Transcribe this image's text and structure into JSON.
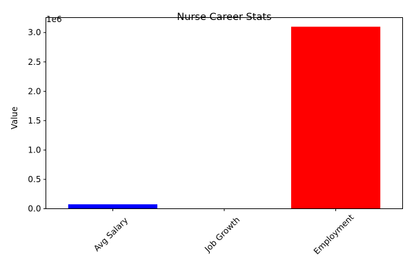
{
  "chart_data": {
    "type": "bar",
    "title": "Nurse Career Stats",
    "xlabel": "",
    "ylabel": "Value",
    "categories": [
      "Avg Salary",
      "Job Growth",
      "Employment"
    ],
    "values": [
      75000,
      7,
      3100000
    ],
    "colors": [
      "#0000ff",
      "#008000",
      "#ff0000"
    ],
    "ylim": [
      0,
      3255000
    ],
    "yticks": [
      0,
      500000,
      1000000,
      1500000,
      2000000,
      2500000,
      3000000
    ],
    "ytick_labels": [
      "0.0",
      "0.5",
      "1.0",
      "1.5",
      "2.0",
      "2.5",
      "3.0"
    ],
    "offset_label": "1e6",
    "xtick_rotation_deg": 45,
    "grid": false,
    "legend": "none"
  }
}
